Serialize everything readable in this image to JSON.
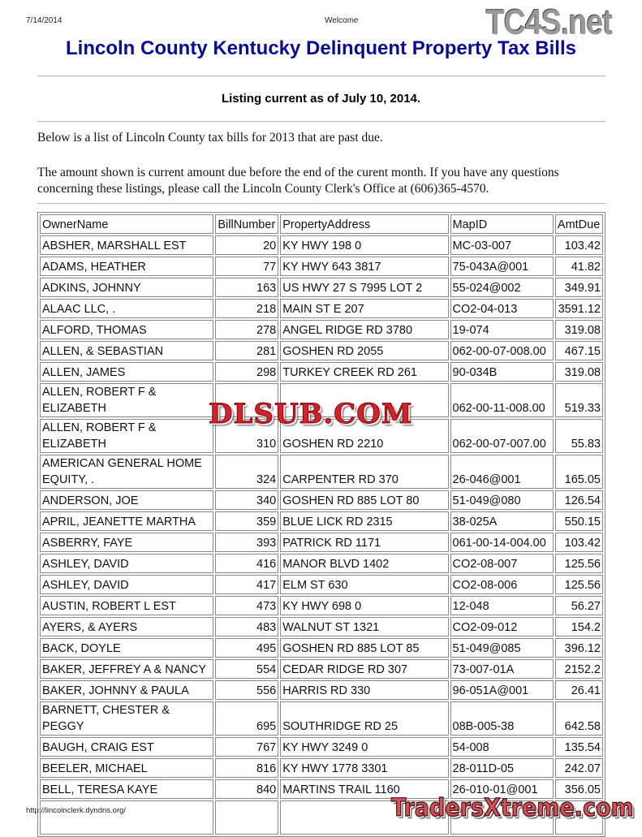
{
  "header": {
    "date": "7/14/2014",
    "page_title": "Welcome",
    "logo_text": "TC4S.net"
  },
  "title": "Lincoln County Kentucky Delinquent Property Tax Bills",
  "listing_note": "Listing current as of July 10, 2014.",
  "intro": "Below is a list of Lincoln County tax bills for 2013 that are past due.",
  "amount_note": "The amount shown is current amount due before the end of the curent month. If you have any questions concerning these listings, please call the Lincoln County Clerk's Office at (606)365-4570.",
  "table": {
    "columns": [
      "OwnerName",
      "BillNumber",
      "PropertyAddress",
      "MapID",
      "AmtDue"
    ],
    "rows": [
      [
        "ABSHER, MARSHALL EST",
        "20",
        "KY HWY 198 0",
        "MC-03-007",
        "103.42"
      ],
      [
        "ADAMS, HEATHER",
        "77",
        "KY HWY 643 3817",
        "75-043A@001",
        "41.82"
      ],
      [
        "ADKINS, JOHNNY",
        "163",
        "US HWY 27 S 7995 LOT 2",
        "55-024@002",
        "349.91"
      ],
      [
        "ALAAC LLC, .",
        "218",
        "MAIN ST E 207",
        "CO2-04-013",
        "3591.12"
      ],
      [
        "ALFORD, THOMAS",
        "278",
        "ANGEL RIDGE RD 3780",
        "19-074",
        "319.08"
      ],
      [
        "ALLEN, & SEBASTIAN",
        "281",
        "GOSHEN RD 2055",
        "062-00-07-008.00",
        "467.15"
      ],
      [
        "ALLEN, JAMES",
        "298",
        "TURKEY CREEK RD 261",
        "90-034B",
        "319.08"
      ],
      [
        "ALLEN, ROBERT F & ELIZABETH",
        "",
        "",
        "062-00-11-008.00",
        "519.33"
      ],
      [
        "ALLEN, ROBERT F & ELIZABETH",
        "310",
        "GOSHEN RD 2210",
        "062-00-07-007.00",
        "55.83"
      ],
      [
        "AMERICAN GENERAL HOME EQUITY, .",
        "324",
        "CARPENTER RD 370",
        "26-046@001",
        "165.05"
      ],
      [
        "ANDERSON, JOE",
        "340",
        "GOSHEN RD 885 LOT 80",
        "51-049@080",
        "126.54"
      ],
      [
        "APRIL, JEANETTE MARTHA",
        "359",
        "BLUE LICK RD 2315",
        "38-025A",
        "550.15"
      ],
      [
        "ASBERRY, FAYE",
        "393",
        "PATRICK RD 1171",
        "061-00-14-004.00",
        "103.42"
      ],
      [
        "ASHLEY, DAVID",
        "416",
        "MANOR BLVD 1402",
        "CO2-08-007",
        "125.56"
      ],
      [
        "ASHLEY, DAVID",
        "417",
        "ELM ST 630",
        "CO2-08-006",
        "125.56"
      ],
      [
        "AUSTIN, ROBERT L EST",
        "473",
        "KY HWY 698 0",
        "12-048",
        "56.27"
      ],
      [
        "AYERS, & AYERS",
        "483",
        "WALNUT ST 1321",
        "CO2-09-012",
        "154.2"
      ],
      [
        "BACK, DOYLE",
        "495",
        "GOSHEN RD 885 LOT 85",
        "51-049@085",
        "396.12"
      ],
      [
        "BAKER, JEFFREY A & NANCY",
        "554",
        "CEDAR RIDGE RD 307",
        "73-007-01A",
        "2152.2"
      ],
      [
        "BAKER, JOHNNY & PAULA",
        "556",
        "HARRIS RD 330",
        "96-051A@001",
        "26.41"
      ],
      [
        "BARNETT, CHESTER & PEGGY",
        "695",
        "SOUTHRIDGE RD 25",
        "08B-005-38",
        "642.58"
      ],
      [
        "BAUGH, CRAIG EST",
        "767",
        "KY HWY 3249 0",
        "54-008",
        "135.54"
      ],
      [
        "BEELER, MICHAEL",
        "816",
        "KY HWY 1778 3301",
        "28-011D-05",
        "242.07"
      ],
      [
        "BELL, TERESA KAYE",
        "840",
        "MARTINS TRAIL 1160",
        "26-010-01@001",
        "356.05"
      ],
      [
        "",
        "",
        "",
        "",
        ""
      ]
    ]
  },
  "watermarks": {
    "center": "DLSUB.COM",
    "bottom": "TradersXtreme.com"
  },
  "footer": {
    "url": "http://lincolnclerk.dyndns.org/"
  }
}
